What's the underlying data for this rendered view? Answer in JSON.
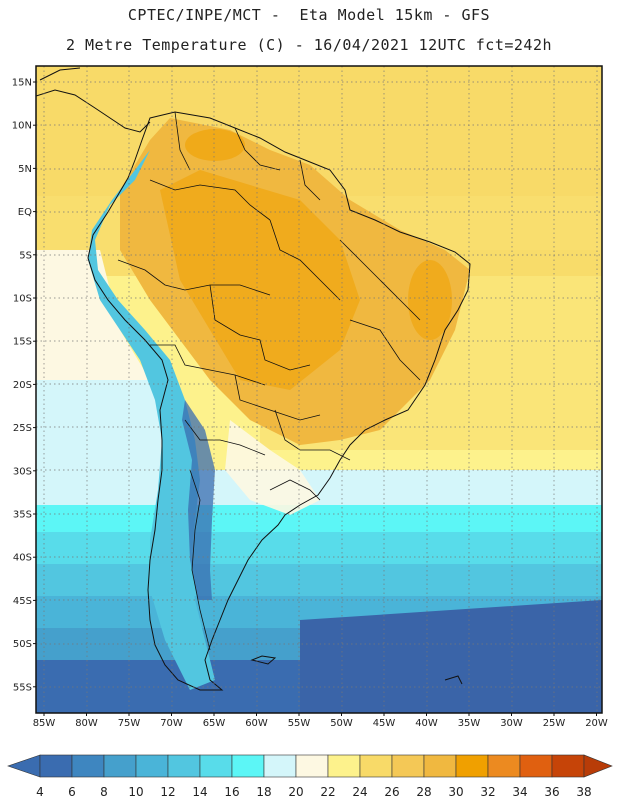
{
  "header": {
    "line1": "CPTEC/INPE/MCT -  Eta Model 15km - GFS",
    "line2": "2 Metre Temperature (C) - 16/04/2021 12UTC fct=242h"
  },
  "axes": {
    "lat_labels": [
      "15N",
      "10N",
      "5N",
      "EQ",
      "5S",
      "10S",
      "15S",
      "20S",
      "25S",
      "30S",
      "35S",
      "40S",
      "45S",
      "50S",
      "55S"
    ],
    "lon_labels": [
      "85W",
      "80W",
      "75W",
      "70W",
      "65W",
      "60W",
      "55W",
      "50W",
      "45W",
      "40W",
      "35W",
      "30W",
      "25W",
      "20W"
    ]
  },
  "colorbar": {
    "labels": [
      "4",
      "6",
      "8",
      "10",
      "12",
      "14",
      "16",
      "18",
      "20",
      "22",
      "24",
      "26",
      "28",
      "30",
      "32",
      "34",
      "36",
      "38"
    ],
    "colors": [
      "#3a6cb0",
      "#3e86c0",
      "#45a0cc",
      "#4ab4d8",
      "#52c6e0",
      "#58dcea",
      "#5cf6f6",
      "#d4f6fa",
      "#fdf8e2",
      "#fdf28c",
      "#f8da68",
      "#f4c856",
      "#f0b840",
      "#f0a000",
      "#ec8a20",
      "#e06010",
      "#c64408"
    ],
    "low_color": "#3a6cb0",
    "high_color": "#b83c08"
  },
  "palette": {
    "ocean_deep": "#3a64a8",
    "ocean_mid": "#45a0cc",
    "ocean_cyan": "#58dcea",
    "ocean_pale": "#d4f6fa",
    "land_warm": "#f0b840",
    "land_hot": "#f0a000",
    "subtropic": "#f8da68",
    "andes": "#5cf6f6"
  }
}
